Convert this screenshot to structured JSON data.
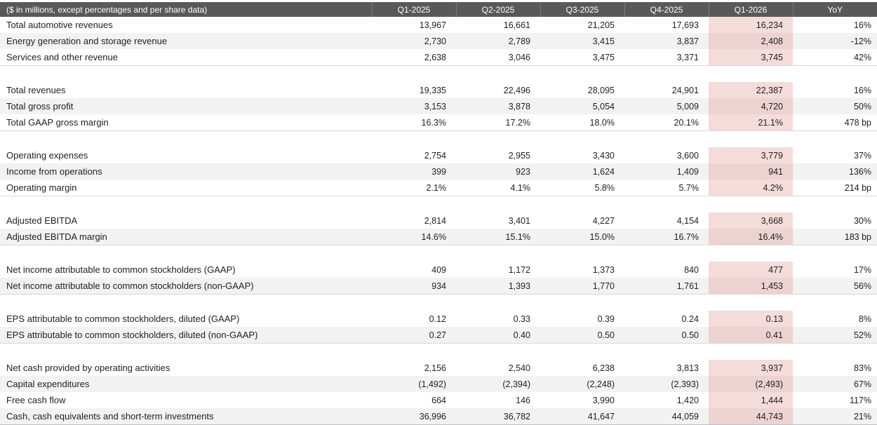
{
  "table": {
    "title_cell": "($ in millions, except percentages and per share data)",
    "columns": [
      "Q1-2025",
      "Q2-2025",
      "Q3-2025",
      "Q4-2025",
      "Q1-2026",
      "YoY"
    ],
    "highlight_column": "Q1-2026",
    "highlight_column_index": 4,
    "colors": {
      "header_bg": "#595959",
      "header_text": "#ffffff",
      "stripe_bg": "#f2f2f2",
      "highlight_bg": "#f4dcdb",
      "highlight_stripe_bg": "#ecd2d1",
      "text": "#1f1f1f",
      "border": "#bfbfbf"
    },
    "sections": [
      {
        "rows": [
          {
            "label": "Total automotive revenues",
            "values": [
              "13,967",
              "16,661",
              "21,205",
              "17,693",
              "16,234",
              "16%"
            ]
          },
          {
            "label": "Energy generation and storage revenue",
            "values": [
              "2,730",
              "2,789",
              "3,415",
              "3,837",
              "2,408",
              "-12%"
            ]
          },
          {
            "label": "Services and other revenue",
            "values": [
              "2,638",
              "3,046",
              "3,475",
              "3,371",
              "3,745",
              "42%"
            ]
          }
        ]
      },
      {
        "rows": [
          {
            "label": "Total revenues",
            "values": [
              "19,335",
              "22,496",
              "28,095",
              "24,901",
              "22,387",
              "16%"
            ]
          },
          {
            "label": "Total gross profit",
            "values": [
              "3,153",
              "3,878",
              "5,054",
              "5,009",
              "4,720",
              "50%"
            ]
          },
          {
            "label": "Total GAAP gross margin",
            "values": [
              "16.3%",
              "17.2%",
              "18.0%",
              "20.1%",
              "21.1%",
              "478 bp"
            ]
          }
        ]
      },
      {
        "rows": [
          {
            "label": "Operating expenses",
            "values": [
              "2,754",
              "2,955",
              "3,430",
              "3,600",
              "3,779",
              "37%"
            ]
          },
          {
            "label": "Income from operations",
            "values": [
              "399",
              "923",
              "1,624",
              "1,409",
              "941",
              "136%"
            ]
          },
          {
            "label": "Operating margin",
            "values": [
              "2.1%",
              "4.1%",
              "5.8%",
              "5.7%",
              "4.2%",
              "214 bp"
            ]
          }
        ]
      },
      {
        "rows": [
          {
            "label": "Adjusted EBITDA",
            "values": [
              "2,814",
              "3,401",
              "4,227",
              "4,154",
              "3,668",
              "30%"
            ]
          },
          {
            "label": "Adjusted EBITDA margin",
            "values": [
              "14.6%",
              "15.1%",
              "15.0%",
              "16.7%",
              "16.4%",
              "183 bp"
            ]
          }
        ]
      },
      {
        "rows": [
          {
            "label": "Net income attributable to common stockholders (GAAP)",
            "values": [
              "409",
              "1,172",
              "1,373",
              "840",
              "477",
              "17%"
            ]
          },
          {
            "label": "Net income attributable to common stockholders (non-GAAP)",
            "values": [
              "934",
              "1,393",
              "1,770",
              "1,761",
              "1,453",
              "56%"
            ]
          }
        ]
      },
      {
        "rows": [
          {
            "label": "EPS attributable to common stockholders, diluted (GAAP)",
            "values": [
              "0.12",
              "0.33",
              "0.39",
              "0.24",
              "0.13",
              "8%"
            ]
          },
          {
            "label": "EPS attributable to common stockholders, diluted (non-GAAP)",
            "values": [
              "0.27",
              "0.40",
              "0.50",
              "0.50",
              "0.41",
              "52%"
            ]
          }
        ]
      },
      {
        "rows": [
          {
            "label": "Net cash provided by operating activities",
            "values": [
              "2,156",
              "2,540",
              "6,238",
              "3,813",
              "3,937",
              "83%"
            ]
          },
          {
            "label": "Capital expenditures",
            "values": [
              "(1,492)",
              "(2,394)",
              "(2,248)",
              "(2,393)",
              "(2,493)",
              "67%"
            ]
          },
          {
            "label": "Free cash flow",
            "values": [
              "664",
              "146",
              "3,990",
              "1,420",
              "1,444",
              "117%"
            ]
          },
          {
            "label": "Cash, cash equivalents and short-term investments",
            "values": [
              "36,996",
              "36,782",
              "41,647",
              "44,059",
              "44,743",
              "21%"
            ]
          }
        ]
      }
    ]
  }
}
